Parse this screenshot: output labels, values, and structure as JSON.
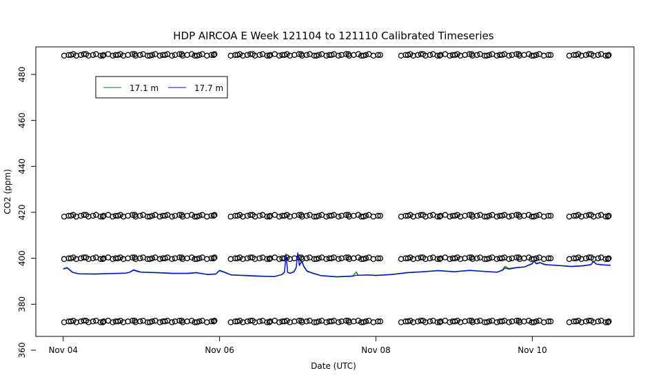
{
  "chart_data": {
    "type": "line",
    "title": "HDP AIRCOA E  Week 121104 to 121110  Calibrated Timeseries",
    "xlabel": "Date (UTC)",
    "ylabel": "CO2 (ppm)",
    "x_ticks": [
      {
        "day": 0,
        "label": "Nov 04"
      },
      {
        "day": 2,
        "label": "Nov 06"
      },
      {
        "day": 4,
        "label": "Nov 08"
      },
      {
        "day": 6,
        "label": "Nov 10"
      }
    ],
    "y_ticks": [
      360,
      380,
      400,
      420,
      440,
      460,
      480
    ],
    "xlim": [
      -0.35,
      7.3
    ],
    "ylim": [
      366,
      492
    ],
    "legend": {
      "position": "top-left",
      "entries": [
        "17.1 m",
        "17.7 m"
      ]
    },
    "colors": {
      "s17_1": "#008000",
      "s17_7": "#0000ff"
    },
    "calibration_levels": [
      372.5,
      400.0,
      418.5,
      488.5
    ],
    "calibration_segments": [
      {
        "start": 0.02,
        "end": 1.96
      },
      {
        "start": 2.15,
        "end": 4.02
      },
      {
        "start": 4.33,
        "end": 6.2
      },
      {
        "start": 6.48,
        "end": 7.0
      }
    ],
    "series": [
      {
        "name": "17.1 m",
        "color": "#008000",
        "points": [
          [
            0.0,
            395.5
          ],
          [
            0.05,
            396
          ],
          [
            0.12,
            394
          ],
          [
            0.2,
            393.3
          ],
          [
            0.4,
            393.2
          ],
          [
            0.6,
            393.4
          ],
          [
            0.8,
            393.6
          ],
          [
            0.85,
            394
          ],
          [
            0.9,
            395
          ],
          [
            0.95,
            394.5
          ],
          [
            1.0,
            394
          ],
          [
            1.2,
            393.8
          ],
          [
            1.4,
            393.5
          ],
          [
            1.6,
            393.5
          ],
          [
            1.7,
            393.8
          ],
          [
            1.85,
            393
          ],
          [
            1.95,
            393.2
          ],
          [
            2.0,
            394.8
          ],
          [
            2.05,
            394.2
          ],
          [
            2.15,
            392.8
          ],
          [
            2.3,
            392.6
          ],
          [
            2.5,
            392.3
          ],
          [
            2.7,
            392.1
          ],
          [
            2.8,
            393.0
          ],
          [
            2.83,
            394
          ],
          [
            2.85,
            402
          ],
          [
            2.87,
            394
          ],
          [
            2.9,
            393.5
          ],
          [
            2.95,
            394.2
          ],
          [
            2.98,
            396
          ],
          [
            3.0,
            402.5
          ],
          [
            3.02,
            397
          ],
          [
            3.05,
            399
          ],
          [
            3.08,
            396.5
          ],
          [
            3.12,
            394.5
          ],
          [
            3.2,
            393.5
          ],
          [
            3.3,
            392.5
          ],
          [
            3.5,
            392.0
          ],
          [
            3.7,
            392.3
          ],
          [
            3.75,
            394
          ],
          [
            3.77,
            392.6
          ],
          [
            3.9,
            392.8
          ],
          [
            4.0,
            392.6
          ],
          [
            4.2,
            393.0
          ],
          [
            4.4,
            393.8
          ],
          [
            4.6,
            394.2
          ],
          [
            4.8,
            394.7
          ],
          [
            5.0,
            394.2
          ],
          [
            5.2,
            394.8
          ],
          [
            5.4,
            394.3
          ],
          [
            5.55,
            394
          ],
          [
            5.62,
            395
          ],
          [
            5.65,
            396.5
          ],
          [
            5.7,
            395.5
          ],
          [
            5.75,
            395.8
          ],
          [
            5.8,
            396
          ],
          [
            5.9,
            396.3
          ],
          [
            6.0,
            397.8
          ],
          [
            6.02,
            399.2
          ],
          [
            6.05,
            397.8
          ],
          [
            6.1,
            398.2
          ],
          [
            6.15,
            397.5
          ],
          [
            6.2,
            397.2
          ],
          [
            6.3,
            397.0
          ],
          [
            6.5,
            396.5
          ],
          [
            6.65,
            396.8
          ],
          [
            6.75,
            397.3
          ],
          [
            6.78,
            398.8
          ],
          [
            6.82,
            397.5
          ],
          [
            6.9,
            397.2
          ],
          [
            7.0,
            397.0
          ]
        ]
      },
      {
        "name": "17.7 m",
        "color": "#0000ff",
        "points": [
          [
            0.0,
            395.3
          ],
          [
            0.05,
            395.8
          ],
          [
            0.12,
            393.8
          ],
          [
            0.2,
            393.2
          ],
          [
            0.4,
            393.1
          ],
          [
            0.6,
            393.3
          ],
          [
            0.8,
            393.5
          ],
          [
            0.85,
            393.9
          ],
          [
            0.9,
            394.8
          ],
          [
            0.95,
            394.3
          ],
          [
            1.0,
            393.9
          ],
          [
            1.2,
            393.7
          ],
          [
            1.4,
            393.4
          ],
          [
            1.6,
            393.4
          ],
          [
            1.7,
            393.7
          ],
          [
            1.85,
            392.9
          ],
          [
            1.95,
            393.1
          ],
          [
            2.0,
            394.6
          ],
          [
            2.05,
            394.0
          ],
          [
            2.15,
            392.7
          ],
          [
            2.3,
            392.5
          ],
          [
            2.5,
            392.2
          ],
          [
            2.7,
            392.0
          ],
          [
            2.8,
            392.9
          ],
          [
            2.83,
            393.8
          ],
          [
            2.85,
            401.5
          ],
          [
            2.87,
            393.8
          ],
          [
            2.9,
            393.4
          ],
          [
            2.95,
            394.0
          ],
          [
            2.98,
            395.8
          ],
          [
            3.0,
            402.0
          ],
          [
            3.02,
            396.8
          ],
          [
            3.05,
            398.6
          ],
          [
            3.08,
            396.2
          ],
          [
            3.12,
            394.3
          ],
          [
            3.2,
            393.4
          ],
          [
            3.3,
            392.4
          ],
          [
            3.5,
            391.9
          ],
          [
            3.7,
            392.2
          ],
          [
            3.75,
            392.6
          ],
          [
            3.9,
            392.7
          ],
          [
            4.0,
            392.5
          ],
          [
            4.2,
            392.9
          ],
          [
            4.4,
            393.7
          ],
          [
            4.6,
            394.1
          ],
          [
            4.8,
            394.6
          ],
          [
            5.0,
            394.1
          ],
          [
            5.2,
            394.7
          ],
          [
            5.4,
            394.2
          ],
          [
            5.55,
            393.9
          ],
          [
            5.62,
            394.8
          ],
          [
            5.65,
            395.8
          ],
          [
            5.7,
            395.3
          ],
          [
            5.75,
            395.6
          ],
          [
            5.8,
            395.9
          ],
          [
            5.9,
            396.2
          ],
          [
            6.0,
            397.6
          ],
          [
            6.02,
            398.8
          ],
          [
            6.05,
            397.6
          ],
          [
            6.1,
            398.0
          ],
          [
            6.15,
            397.3
          ],
          [
            6.2,
            397.1
          ],
          [
            6.3,
            396.9
          ],
          [
            6.5,
            396.4
          ],
          [
            6.65,
            396.7
          ],
          [
            6.75,
            397.2
          ],
          [
            6.78,
            398.5
          ],
          [
            6.82,
            397.4
          ],
          [
            6.9,
            397.1
          ],
          [
            7.0,
            396.9
          ]
        ]
      }
    ]
  }
}
